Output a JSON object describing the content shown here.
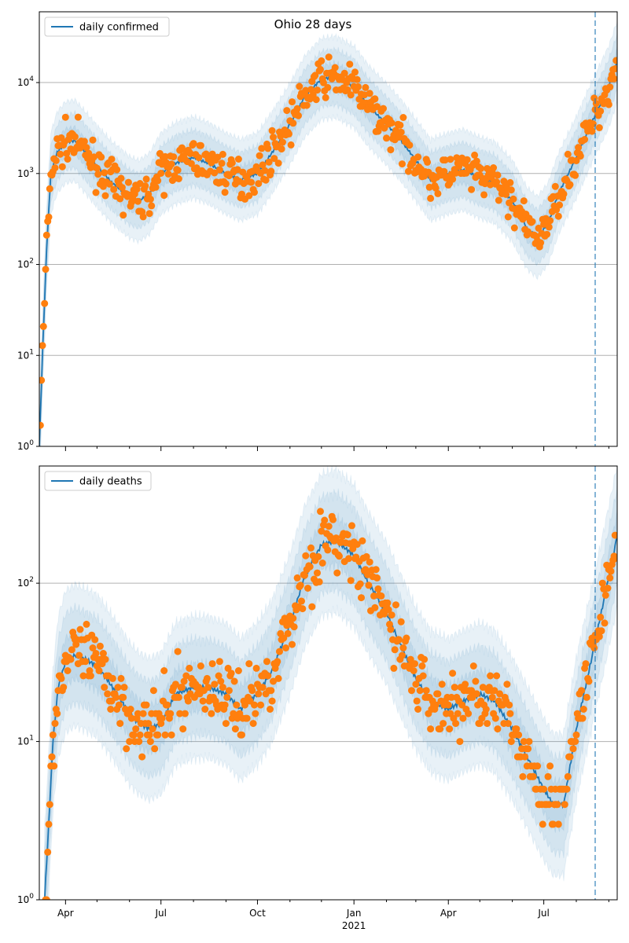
{
  "title": "Ohio 28 days",
  "x_ticks": [
    "Apr",
    "Jul",
    "Oct",
    "Jan",
    "Apr",
    "Jul"
  ],
  "x_year_label": "2021",
  "colors": {
    "line": "#1f77b4",
    "points": "#ff7f0e",
    "band": "#1f77b4",
    "grid": "#b0b0b0",
    "forecast_line": "#1f77b4"
  },
  "chart_data": [
    {
      "type": "line",
      "y_scale": "log",
      "ylim": [
        1,
        60000
      ],
      "y_tick_labels": [
        "10^0",
        "10^1",
        "10^2",
        "10^3",
        "10^4"
      ],
      "xlim": [
        "2020-03-07",
        "2021-09-09"
      ],
      "forecast_start": "2021-08-19",
      "legend": {
        "label": "daily confirmed",
        "position": "top-left"
      },
      "series": [
        {
          "name": "daily confirmed",
          "x": [
            "2020-03-07",
            "2020-03-10",
            "2020-03-14",
            "2020-03-18",
            "2020-03-24",
            "2020-04-01",
            "2020-04-10",
            "2020-04-20",
            "2020-05-01",
            "2020-05-15",
            "2020-06-01",
            "2020-06-10",
            "2020-06-20",
            "2020-07-01",
            "2020-07-15",
            "2020-08-01",
            "2020-08-15",
            "2020-09-01",
            "2020-09-15",
            "2020-10-01",
            "2020-10-15",
            "2020-11-01",
            "2020-11-15",
            "2020-12-01",
            "2020-12-15",
            "2021-01-01",
            "2021-01-15",
            "2021-02-01",
            "2021-02-15",
            "2021-03-01",
            "2021-03-15",
            "2021-04-01",
            "2021-04-15",
            "2021-05-01",
            "2021-05-15",
            "2021-06-01",
            "2021-06-15",
            "2021-06-25",
            "2021-07-05",
            "2021-07-15",
            "2021-08-01",
            "2021-08-15",
            "2021-09-01",
            "2021-09-09"
          ],
          "y": [
            1,
            10,
            150,
            1000,
            1700,
            2200,
            2300,
            1700,
            1200,
            800,
            550,
            500,
            600,
            1000,
            1300,
            1500,
            1300,
            1000,
            850,
            1000,
            1700,
            3500,
            7000,
            11000,
            11500,
            9000,
            5500,
            3500,
            2300,
            1400,
            850,
            1000,
            1100,
            900,
            800,
            500,
            250,
            200,
            280,
            600,
            1500,
            3500,
            9000,
            17000
          ]
        }
      ]
    },
    {
      "type": "line",
      "y_scale": "log",
      "ylim": [
        1,
        550
      ],
      "y_tick_labels": [
        "10^0",
        "10^1",
        "10^2"
      ],
      "xlim": [
        "2020-03-07",
        "2021-09-09"
      ],
      "forecast_start": "2021-08-19",
      "legend": {
        "label": "daily deaths",
        "position": "top-left"
      },
      "series": [
        {
          "name": "daily deaths",
          "x": [
            "2020-03-12",
            "2020-03-16",
            "2020-03-20",
            "2020-03-25",
            "2020-04-01",
            "2020-04-10",
            "2020-04-20",
            "2020-05-01",
            "2020-05-10",
            "2020-05-20",
            "2020-06-01",
            "2020-06-10",
            "2020-06-20",
            "2020-07-01",
            "2020-07-15",
            "2020-08-01",
            "2020-08-15",
            "2020-09-01",
            "2020-09-15",
            "2020-10-01",
            "2020-10-15",
            "2020-11-01",
            "2020-11-15",
            "2020-12-01",
            "2020-12-15",
            "2021-01-01",
            "2021-01-15",
            "2021-02-01",
            "2021-02-15",
            "2021-03-01",
            "2021-03-15",
            "2021-04-01",
            "2021-04-15",
            "2021-05-01",
            "2021-05-15",
            "2021-06-01",
            "2021-06-15",
            "2021-07-01",
            "2021-07-10",
            "2021-07-20",
            "2021-08-01",
            "2021-08-15",
            "2021-09-01",
            "2021-09-09"
          ],
          "y": [
            1,
            3,
            10,
            22,
            32,
            35,
            33,
            30,
            25,
            20,
            15,
            13,
            12,
            13,
            20,
            22,
            22,
            20,
            16,
            20,
            28,
            55,
            110,
            175,
            185,
            150,
            100,
            65,
            40,
            25,
            18,
            16,
            18,
            20,
            18,
            12,
            8,
            5,
            4,
            4,
            12,
            32,
            110,
            200
          ]
        }
      ]
    }
  ]
}
